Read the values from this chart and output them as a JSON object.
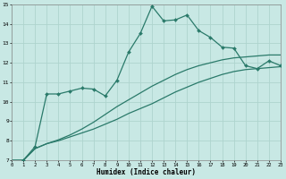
{
  "xlabel": "Humidex (Indice chaleur)",
  "bg_color": "#c8e8e4",
  "grid_color": "#aed4ce",
  "line_color": "#2a7a6a",
  "x_min": 0,
  "x_max": 23,
  "y_min": 7,
  "y_max": 15,
  "line_straight1_x": [
    0,
    1,
    2,
    3,
    4,
    5,
    6,
    7,
    8,
    9,
    10,
    11,
    12,
    13,
    14,
    15,
    16,
    17,
    18,
    19,
    20,
    21,
    22,
    23
  ],
  "line_straight1_y": [
    7.0,
    7.0,
    7.6,
    7.85,
    8.0,
    8.2,
    8.4,
    8.6,
    8.85,
    9.1,
    9.4,
    9.65,
    9.9,
    10.2,
    10.5,
    10.75,
    11.0,
    11.2,
    11.4,
    11.55,
    11.65,
    11.7,
    11.75,
    11.8
  ],
  "line_straight2_x": [
    0,
    1,
    2,
    3,
    4,
    5,
    6,
    7,
    8,
    9,
    10,
    11,
    12,
    13,
    14,
    15,
    16,
    17,
    18,
    19,
    20,
    21,
    22,
    23
  ],
  "line_straight2_y": [
    7.0,
    7.0,
    7.6,
    7.85,
    8.05,
    8.3,
    8.6,
    8.95,
    9.35,
    9.75,
    10.1,
    10.45,
    10.8,
    11.1,
    11.4,
    11.65,
    11.85,
    12.0,
    12.15,
    12.25,
    12.3,
    12.35,
    12.4,
    12.4
  ],
  "line_wiggly_x": [
    1,
    2,
    3,
    4,
    5,
    6,
    7,
    8,
    9,
    10,
    11,
    12,
    13,
    14,
    15,
    16,
    17,
    18,
    19,
    20,
    21,
    22,
    23
  ],
  "line_wiggly_y": [
    7.0,
    7.7,
    10.4,
    10.4,
    10.55,
    10.7,
    10.65,
    10.3,
    11.1,
    12.55,
    13.5,
    14.9,
    14.15,
    14.2,
    14.45,
    13.65,
    13.3,
    12.8,
    12.75,
    11.85,
    11.7,
    12.1,
    11.85
  ]
}
